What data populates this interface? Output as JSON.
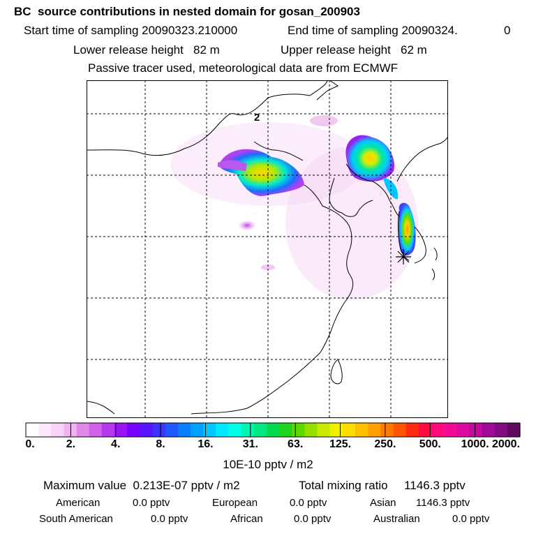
{
  "header": {
    "title": "BC  source contributions in nested domain for gosan_200903",
    "start_time": "Start time of sampling 20090323.210000",
    "end_time": "End time of sampling 20090324.",
    "end_time_suffix": "0",
    "lower_release": "Lower release height   82 m",
    "upper_release": "Upper release height   62 m",
    "tracer_note": "Passive tracer used, meteorological data are from ECMWF"
  },
  "map": {
    "grid_label": "2",
    "station_marker": "asterisk-marker"
  },
  "colorbar": {
    "tick_labels": [
      "0.",
      "2.",
      "4.",
      "8.",
      "16.",
      "31.",
      "63.",
      "125.",
      "250.",
      "500.",
      "1000.",
      "2000."
    ],
    "units": "10E-10 pptv / m2",
    "colors": [
      "#ffffff",
      "#fde8fd",
      "#f8d2f8",
      "#f0b4f0",
      "#e08ae8",
      "#d060e8",
      "#b838ec",
      "#9a14f4",
      "#7a00ff",
      "#5a14ff",
      "#3c34ff",
      "#1e58ff",
      "#0a7cff",
      "#00a0ff",
      "#00c6ff",
      "#00e8ff",
      "#00ffe6",
      "#00f6b4",
      "#00e882",
      "#00da50",
      "#1ed41e",
      "#5ad800",
      "#96e000",
      "#c8ea00",
      "#f0f000",
      "#ffdc00",
      "#ffbe00",
      "#ffa000",
      "#ff7a00",
      "#ff5400",
      "#ff2c14",
      "#ff0a3c",
      "#ff0a78",
      "#f20a96",
      "#dc0aa0",
      "#c00aa0",
      "#a00a96",
      "#820a82",
      "#620a62"
    ]
  },
  "summary": {
    "max_value": "Maximum value  0.213E-07 pptv / m2",
    "total_mixing": "Total mixing ratio     1146.3 pptv",
    "american_label": "American",
    "american_value": "0.0 pptv",
    "european_label": "European",
    "european_value": "0.0 pptv",
    "asian_label": "Asian",
    "asian_value": "1146.3 pptv",
    "south_american_label": "South American",
    "south_american_value": "0.0 pptv",
    "african_label": "African",
    "african_value": "0.0 pptv",
    "australian_label": "Australian",
    "australian_value": "0.0 pptv"
  }
}
